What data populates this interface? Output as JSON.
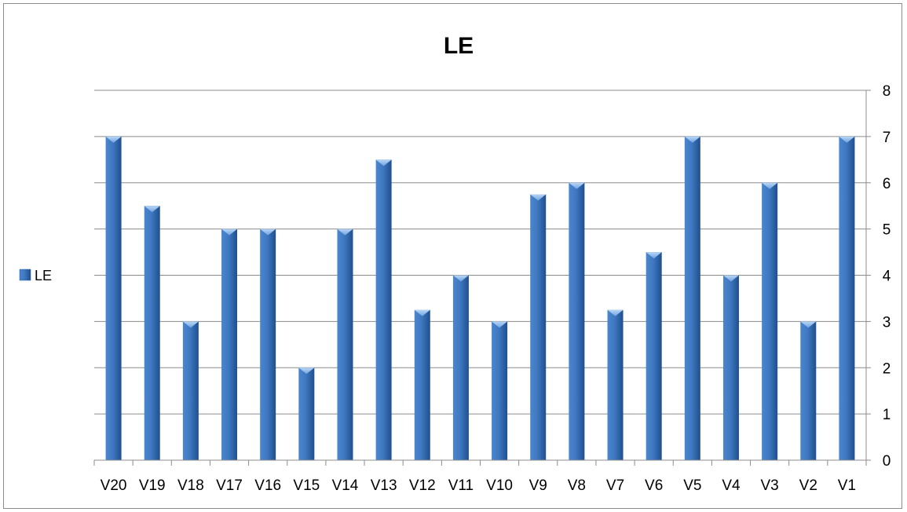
{
  "chart_data": {
    "type": "bar",
    "title": "LE",
    "xlabel": "",
    "ylabel": "",
    "categories": [
      "V20",
      "V19",
      "V18",
      "V17",
      "V16",
      "V15",
      "V14",
      "V13",
      "V12",
      "V11",
      "V10",
      "V9",
      "V8",
      "V7",
      "V6",
      "V5",
      "V4",
      "V3",
      "V2",
      "V1"
    ],
    "series": [
      {
        "name": "LE",
        "values": [
          7,
          5.5,
          3,
          5,
          5,
          2,
          5,
          6.5,
          3.25,
          4,
          3,
          5.75,
          6,
          3.25,
          4.5,
          7,
          4,
          6,
          3,
          7
        ],
        "color": "#3f78c0"
      }
    ],
    "ylim": [
      0,
      8
    ],
    "yticks": [
      0,
      1,
      2,
      3,
      4,
      5,
      6,
      7,
      8
    ],
    "y_axis_side": "right",
    "grid": true,
    "legend": {
      "position": "left",
      "entries": [
        "LE"
      ]
    }
  }
}
